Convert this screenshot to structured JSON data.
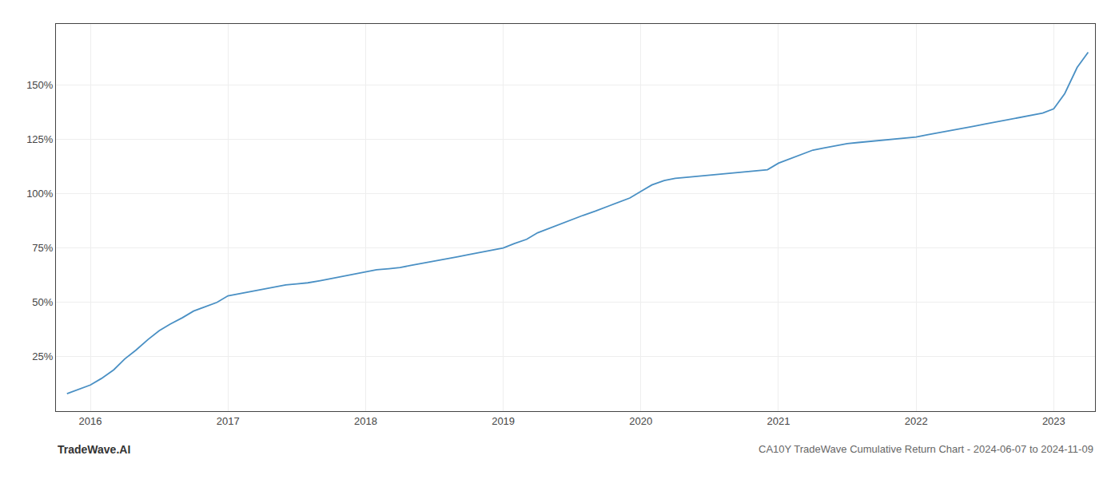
{
  "chart_data": {
    "type": "line",
    "title": "CA10Y TradeWave Cumulative Return Chart - 2024-06-07 to 2024-11-09",
    "annotations": [
      "TradeWave.AI"
    ],
    "color": "#4a90c4",
    "grid": true,
    "x": [
      2015.83,
      2015.92,
      2016.0,
      2016.08,
      2016.17,
      2016.25,
      2016.33,
      2016.42,
      2016.5,
      2016.58,
      2016.67,
      2016.75,
      2016.83,
      2016.92,
      2017.0,
      2017.08,
      2017.17,
      2017.25,
      2017.33,
      2017.42,
      2017.5,
      2017.58,
      2017.67,
      2017.75,
      2017.83,
      2017.92,
      2018.0,
      2018.08,
      2018.17,
      2018.25,
      2018.33,
      2018.42,
      2018.5,
      2018.58,
      2018.67,
      2018.75,
      2018.83,
      2018.92,
      2019.0,
      2019.08,
      2019.17,
      2019.25,
      2019.33,
      2019.42,
      2019.5,
      2019.58,
      2019.67,
      2019.75,
      2019.83,
      2019.92,
      2020.0,
      2020.08,
      2020.17,
      2020.25,
      2020.33,
      2020.42,
      2020.5,
      2020.58,
      2020.67,
      2020.75,
      2020.83,
      2020.92,
      2021.0,
      2021.08,
      2021.17,
      2021.25,
      2021.33,
      2021.42,
      2021.5,
      2021.58,
      2021.67,
      2021.75,
      2021.83,
      2021.92,
      2022.0,
      2022.08,
      2022.17,
      2022.25,
      2022.33,
      2022.42,
      2022.5,
      2022.58,
      2022.67,
      2022.75,
      2022.83,
      2022.92,
      2023.0,
      2023.08,
      2023.17,
      2023.25
    ],
    "values": [
      8,
      10,
      12,
      15,
      19,
      24,
      28,
      33,
      37,
      40,
      43,
      46,
      48,
      50,
      53,
      54,
      55,
      56,
      57,
      58,
      58.5,
      59,
      60,
      61,
      62,
      63,
      64,
      65,
      65.5,
      66,
      67,
      68,
      69,
      70,
      71,
      72,
      73,
      74,
      75,
      77,
      79,
      82,
      84,
      86,
      88,
      90,
      92,
      94,
      96,
      98,
      101,
      104,
      106,
      107,
      107.5,
      108,
      108.5,
      109,
      109.5,
      110,
      110.5,
      111,
      114,
      116,
      118,
      120,
      121,
      122,
      123,
      123.5,
      124,
      124.5,
      125,
      125.5,
      126,
      127,
      128,
      129,
      130,
      131,
      132,
      133,
      134,
      135,
      136,
      137,
      139,
      146,
      158,
      165
    ],
    "xlim": [
      2015.75,
      2023.3
    ],
    "xticks": [
      2016,
      2017,
      2018,
      2019,
      2020,
      2021,
      2022,
      2023
    ],
    "ylim": [
      0,
      178
    ],
    "yticks": [
      {
        "value": 25,
        "label": "25%"
      },
      {
        "value": 50,
        "label": "50%"
      },
      {
        "value": 75,
        "label": "75%"
      },
      {
        "value": 100,
        "label": "100%"
      },
      {
        "value": 125,
        "label": "125%"
      },
      {
        "value": 150,
        "label": "150%"
      }
    ]
  }
}
